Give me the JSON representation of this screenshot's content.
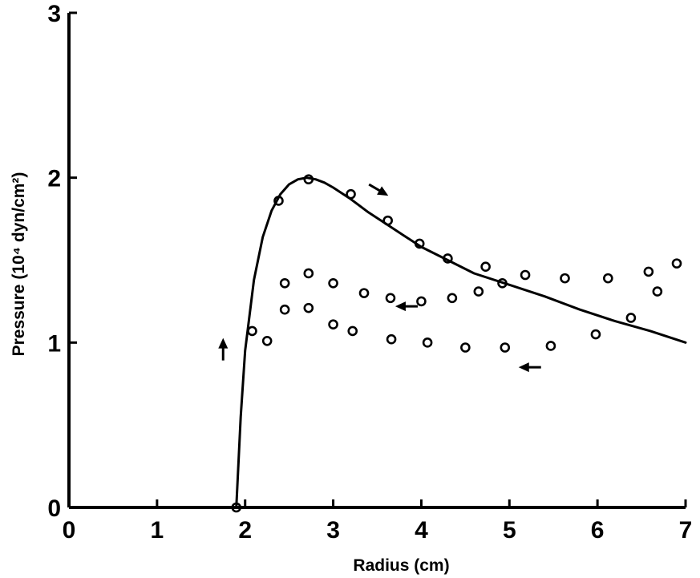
{
  "chart_data": {
    "type": "scatter",
    "title": "",
    "xlabel": "Radius (cm)",
    "ylabel": "Pressure (10⁴ dyn/cm²)",
    "xlim": [
      0,
      7
    ],
    "ylim": [
      0,
      3
    ],
    "xticks": [
      "0",
      "1",
      "2",
      "3",
      "4",
      "5",
      "6",
      "7"
    ],
    "yticks": [
      "0",
      "1",
      "2",
      "3"
    ],
    "grid": false,
    "legend": "none",
    "series": [
      {
        "kind": "line",
        "x": [
          1.9,
          1.95,
          2.0,
          2.1,
          2.2,
          2.3,
          2.4,
          2.5,
          2.6,
          2.7,
          2.8,
          2.9,
          3.0,
          3.2,
          3.4,
          3.6,
          3.8,
          4.0,
          4.3,
          4.6,
          5.0,
          5.4,
          5.8,
          6.2,
          6.6,
          7.0
        ],
        "y": [
          0.0,
          0.55,
          0.95,
          1.38,
          1.64,
          1.8,
          1.9,
          1.96,
          1.99,
          2.0,
          1.99,
          1.97,
          1.94,
          1.87,
          1.79,
          1.72,
          1.65,
          1.58,
          1.5,
          1.42,
          1.35,
          1.28,
          1.2,
          1.13,
          1.07,
          1.0
        ]
      },
      {
        "kind": "points",
        "x": [
          1.9,
          2.08,
          2.25,
          2.38,
          2.45,
          2.45,
          2.72,
          2.72,
          2.72,
          3.0,
          3.0,
          3.2,
          3.22,
          3.35,
          3.62,
          3.65,
          3.66,
          3.98,
          4.0,
          4.07,
          4.3,
          4.35,
          4.5,
          4.65,
          4.73,
          4.92,
          4.95,
          5.18,
          5.47,
          5.63,
          5.98,
          6.12,
          6.38,
          6.58,
          6.68,
          6.9
        ],
        "y": [
          0.0,
          1.07,
          1.01,
          1.86,
          1.36,
          1.2,
          1.99,
          1.42,
          1.21,
          1.36,
          1.11,
          1.9,
          1.07,
          1.3,
          1.74,
          1.27,
          1.02,
          1.6,
          1.25,
          1.0,
          1.51,
          1.27,
          0.97,
          1.31,
          1.46,
          1.36,
          0.97,
          1.41,
          0.98,
          1.39,
          1.05,
          1.39,
          1.15,
          1.43,
          1.31,
          1.48
        ]
      }
    ],
    "annotations": [
      {
        "type": "arrow",
        "direction": "up",
        "x": 1.75,
        "y": 0.95
      },
      {
        "type": "arrow",
        "direction": "down-right",
        "x": 3.5,
        "y": 1.93
      },
      {
        "type": "arrow",
        "direction": "left",
        "x": 3.85,
        "y": 1.22
      },
      {
        "type": "arrow",
        "direction": "left",
        "x": 5.25,
        "y": 0.85
      }
    ]
  }
}
